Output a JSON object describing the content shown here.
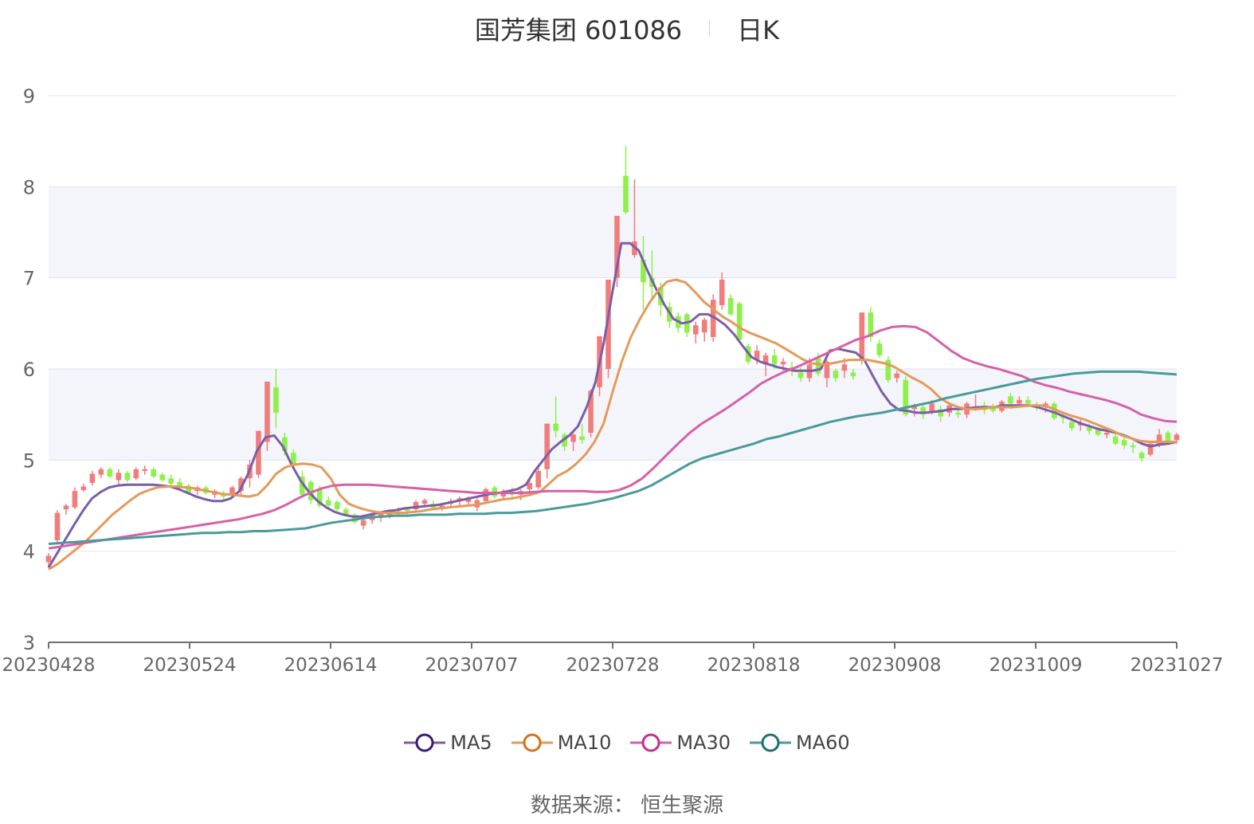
{
  "title": {
    "name": "国芳集团 601086",
    "period": "日K"
  },
  "source": "数据来源： 恒生聚源",
  "colors": {
    "up": "#f27c7c",
    "down": "#8ef04b",
    "MA5": "#7b5ea7",
    "MA10": "#e49a5a",
    "MA30": "#d660a8",
    "MA60": "#4a9a9a",
    "band": "#f3f5fb",
    "grid": "#dfe4f0",
    "axis": "#666666"
  },
  "legend": [
    {
      "name": "MA5",
      "icon_color": "#3b1a78"
    },
    {
      "name": "MA10",
      "icon_color": "#d4721c"
    },
    {
      "name": "MA30",
      "icon_color": "#c42d8c"
    },
    {
      "name": "MA60",
      "icon_color": "#1e7070"
    }
  ],
  "chart_data": {
    "type": "candlestick",
    "ylim": [
      3,
      9
    ],
    "yticks": [
      "3",
      "4",
      "5",
      "6",
      "7",
      "8",
      "9"
    ],
    "xtick_labels": [
      "20230428",
      "20230524",
      "20230614",
      "20230707",
      "20230728",
      "20230818",
      "20230908",
      "20231009",
      "20231027"
    ],
    "candles_ohlc": [
      [
        3.88,
        3.98,
        3.82,
        3.95
      ],
      [
        4.12,
        4.45,
        4.1,
        4.42
      ],
      [
        4.46,
        4.52,
        4.4,
        4.5
      ],
      [
        4.48,
        4.7,
        4.46,
        4.66
      ],
      [
        4.67,
        4.74,
        4.65,
        4.71
      ],
      [
        4.75,
        4.88,
        4.72,
        4.85
      ],
      [
        4.84,
        4.92,
        4.8,
        4.9
      ],
      [
        4.9,
        4.92,
        4.8,
        4.82
      ],
      [
        4.78,
        4.9,
        4.72,
        4.86
      ],
      [
        4.86,
        4.88,
        4.76,
        4.78
      ],
      [
        4.8,
        4.92,
        4.78,
        4.9
      ],
      [
        4.88,
        4.94,
        4.84,
        4.9
      ],
      [
        4.9,
        4.92,
        4.8,
        4.82
      ],
      [
        4.84,
        4.86,
        4.76,
        4.78
      ],
      [
        4.8,
        4.84,
        4.72,
        4.74
      ],
      [
        4.76,
        4.8,
        4.68,
        4.7
      ],
      [
        4.72,
        4.74,
        4.62,
        4.64
      ],
      [
        4.66,
        4.72,
        4.62,
        4.7
      ],
      [
        4.7,
        4.72,
        4.62,
        4.64
      ],
      [
        4.62,
        4.68,
        4.58,
        4.66
      ],
      [
        4.62,
        4.66,
        4.56,
        4.6
      ],
      [
        4.62,
        4.72,
        4.58,
        4.7
      ],
      [
        4.66,
        4.82,
        4.62,
        4.8
      ],
      [
        4.8,
        5.0,
        4.7,
        4.95
      ],
      [
        4.84,
        5.32,
        4.8,
        5.32
      ],
      [
        5.2,
        5.86,
        5.1,
        5.86
      ],
      [
        5.8,
        6.0,
        5.35,
        5.52
      ],
      [
        5.25,
        5.3,
        5.05,
        5.1
      ],
      [
        5.08,
        5.12,
        4.9,
        4.95
      ],
      [
        4.82,
        4.88,
        4.6,
        4.62
      ],
      [
        4.76,
        4.78,
        4.52,
        4.56
      ],
      [
        4.68,
        4.72,
        4.48,
        4.5
      ],
      [
        4.56,
        4.6,
        4.48,
        4.5
      ],
      [
        4.54,
        4.56,
        4.44,
        4.46
      ],
      [
        4.46,
        4.48,
        4.38,
        4.4
      ],
      [
        4.4,
        4.42,
        4.3,
        4.32
      ],
      [
        4.28,
        4.36,
        4.24,
        4.34
      ],
      [
        4.34,
        4.42,
        4.3,
        4.4
      ],
      [
        4.38,
        4.44,
        4.32,
        4.42
      ],
      [
        4.4,
        4.46,
        4.36,
        4.44
      ],
      [
        4.44,
        4.48,
        4.4,
        4.46
      ],
      [
        4.46,
        4.48,
        4.38,
        4.44
      ],
      [
        4.46,
        4.56,
        4.42,
        4.54
      ],
      [
        4.52,
        4.58,
        4.48,
        4.56
      ],
      [
        4.52,
        4.56,
        4.46,
        4.48
      ],
      [
        4.48,
        4.52,
        4.44,
        4.5
      ],
      [
        4.52,
        4.58,
        4.48,
        4.55
      ],
      [
        4.56,
        4.6,
        4.5,
        4.58
      ],
      [
        4.54,
        4.6,
        4.5,
        4.58
      ],
      [
        4.48,
        4.58,
        4.44,
        4.56
      ],
      [
        4.55,
        4.7,
        4.52,
        4.68
      ],
      [
        4.7,
        4.72,
        4.58,
        4.6
      ],
      [
        4.6,
        4.68,
        4.56,
        4.66
      ],
      [
        4.64,
        4.7,
        4.58,
        4.62
      ],
      [
        4.62,
        4.68,
        4.56,
        4.66
      ],
      [
        4.68,
        4.78,
        4.62,
        4.75
      ],
      [
        4.7,
        4.92,
        4.68,
        4.88
      ],
      [
        4.9,
        5.4,
        4.8,
        5.4
      ],
      [
        5.4,
        5.7,
        5.25,
        5.32
      ],
      [
        5.28,
        5.3,
        5.1,
        5.15
      ],
      [
        5.2,
        5.32,
        5.1,
        5.28
      ],
      [
        5.26,
        5.4,
        5.18,
        5.22
      ],
      [
        5.3,
        5.78,
        5.25,
        5.76
      ],
      [
        5.8,
        6.36,
        5.7,
        6.36
      ],
      [
        6.0,
        6.98,
        5.9,
        6.98
      ],
      [
        7.0,
        7.68,
        6.9,
        7.68
      ],
      [
        8.12,
        8.45,
        7.7,
        7.72
      ],
      [
        7.25,
        8.08,
        7.22,
        7.4
      ],
      [
        7.2,
        7.46,
        6.65,
        6.95
      ],
      [
        7.0,
        7.3,
        6.75,
        6.9
      ],
      [
        6.9,
        6.95,
        6.58,
        6.7
      ],
      [
        6.68,
        6.74,
        6.45,
        6.52
      ],
      [
        6.58,
        6.62,
        6.4,
        6.45
      ],
      [
        6.6,
        6.62,
        6.35,
        6.4
      ],
      [
        6.38,
        6.52,
        6.28,
        6.48
      ],
      [
        6.4,
        6.56,
        6.3,
        6.54
      ],
      [
        6.35,
        6.82,
        6.3,
        6.76
      ],
      [
        6.7,
        7.06,
        6.65,
        6.98
      ],
      [
        6.78,
        6.82,
        6.58,
        6.6
      ],
      [
        6.72,
        6.74,
        6.3,
        6.32
      ],
      [
        6.25,
        6.28,
        6.05,
        6.08
      ],
      [
        6.1,
        6.26,
        6.05,
        6.2
      ],
      [
        6.05,
        6.18,
        5.92,
        6.15
      ],
      [
        6.15,
        6.22,
        6.0,
        6.05
      ],
      [
        6.05,
        6.12,
        5.98,
        6.08
      ],
      [
        6.02,
        6.08,
        5.92,
        5.98
      ],
      [
        5.96,
        6.02,
        5.86,
        5.9
      ],
      [
        5.9,
        6.12,
        5.86,
        6.05
      ],
      [
        6.12,
        6.18,
        5.92,
        5.95
      ],
      [
        5.9,
        6.1,
        5.8,
        6.08
      ],
      [
        5.98,
        6.0,
        5.86,
        5.9
      ],
      [
        5.98,
        6.12,
        5.9,
        6.05
      ],
      [
        5.96,
        6.0,
        5.88,
        5.92
      ],
      [
        6.1,
        6.62,
        6.05,
        6.62
      ],
      [
        6.62,
        6.68,
        6.3,
        6.35
      ],
      [
        6.28,
        6.32,
        6.12,
        6.15
      ],
      [
        6.1,
        6.14,
        5.85,
        5.88
      ],
      [
        5.9,
        5.98,
        5.85,
        5.95
      ],
      [
        5.88,
        5.92,
        5.48,
        5.5
      ],
      [
        5.56,
        5.62,
        5.48,
        5.6
      ],
      [
        5.58,
        5.62,
        5.45,
        5.5
      ],
      [
        5.52,
        5.66,
        5.5,
        5.62
      ],
      [
        5.56,
        5.6,
        5.42,
        5.48
      ],
      [
        5.52,
        5.62,
        5.48,
        5.6
      ],
      [
        5.52,
        5.56,
        5.46,
        5.5
      ],
      [
        5.5,
        5.64,
        5.46,
        5.62
      ],
      [
        5.58,
        5.72,
        5.54,
        5.58
      ],
      [
        5.6,
        5.64,
        5.5,
        5.55
      ],
      [
        5.58,
        5.62,
        5.52,
        5.54
      ],
      [
        5.54,
        5.66,
        5.52,
        5.64
      ],
      [
        5.7,
        5.74,
        5.56,
        5.62
      ],
      [
        5.62,
        5.7,
        5.58,
        5.66
      ],
      [
        5.66,
        5.7,
        5.58,
        5.62
      ],
      [
        5.6,
        5.64,
        5.54,
        5.58
      ],
      [
        5.58,
        5.64,
        5.52,
        5.62
      ],
      [
        5.62,
        5.64,
        5.44,
        5.46
      ],
      [
        5.48,
        5.52,
        5.4,
        5.46
      ],
      [
        5.42,
        5.48,
        5.32,
        5.35
      ],
      [
        5.38,
        5.44,
        5.32,
        5.4
      ],
      [
        5.36,
        5.4,
        5.28,
        5.32
      ],
      [
        5.34,
        5.36,
        5.26,
        5.28
      ],
      [
        5.28,
        5.34,
        5.24,
        5.3
      ],
      [
        5.26,
        5.3,
        5.16,
        5.18
      ],
      [
        5.22,
        5.26,
        5.12,
        5.16
      ],
      [
        5.16,
        5.2,
        5.08,
        5.14
      ],
      [
        5.08,
        5.1,
        4.98,
        5.02
      ],
      [
        5.06,
        5.2,
        5.04,
        5.18
      ],
      [
        5.18,
        5.34,
        5.14,
        5.28
      ],
      [
        5.3,
        5.32,
        5.18,
        5.2
      ],
      [
        5.22,
        5.3,
        5.18,
        5.28
      ]
    ],
    "series": [
      {
        "name": "MA5",
        "values": [
          3.82,
          3.98,
          4.14,
          4.3,
          4.45,
          4.58,
          4.65,
          4.7,
          4.72,
          4.73,
          4.73,
          4.73,
          4.73,
          4.72,
          4.71,
          4.68,
          4.64,
          4.6,
          4.57,
          4.55,
          4.55,
          4.58,
          4.66,
          4.85,
          5.1,
          5.25,
          5.27,
          5.15,
          4.95,
          4.78,
          4.65,
          4.55,
          4.48,
          4.43,
          4.4,
          4.38,
          4.38,
          4.4,
          4.42,
          4.44,
          4.45,
          4.47,
          4.48,
          4.49,
          4.5,
          4.51,
          4.53,
          4.55,
          4.57,
          4.59,
          4.61,
          4.63,
          4.64,
          4.66,
          4.68,
          4.73,
          4.88,
          5.0,
          5.12,
          5.2,
          5.27,
          5.37,
          5.58,
          5.85,
          6.3,
          6.86,
          7.38,
          7.38,
          7.3,
          7.08,
          6.88,
          6.7,
          6.55,
          6.5,
          6.52,
          6.6,
          6.6,
          6.55,
          6.48,
          6.38,
          6.25,
          6.13,
          6.08,
          6.05,
          6.02,
          6.0,
          5.98,
          5.98,
          5.98,
          6.0,
          6.2,
          6.22,
          6.2,
          6.18,
          6.1,
          5.92,
          5.75,
          5.62,
          5.55,
          5.54,
          5.52,
          5.52,
          5.53,
          5.54,
          5.56,
          5.56,
          5.57,
          5.58,
          5.58,
          5.58,
          5.6,
          5.6,
          5.6,
          5.6,
          5.58,
          5.55,
          5.52,
          5.48,
          5.44,
          5.4,
          5.37,
          5.34,
          5.32,
          5.3,
          5.27,
          5.23,
          5.18,
          5.15,
          5.17,
          5.18,
          5.2
        ]
      },
      {
        "name": "MA10",
        "values": [
          3.8,
          3.86,
          3.94,
          4.02,
          4.1,
          4.2,
          4.3,
          4.4,
          4.48,
          4.56,
          4.63,
          4.67,
          4.7,
          4.71,
          4.71,
          4.7,
          4.69,
          4.67,
          4.65,
          4.63,
          4.62,
          4.61,
          4.6,
          4.62,
          4.72,
          4.85,
          4.92,
          4.95,
          4.96,
          4.95,
          4.92,
          4.8,
          4.62,
          4.52,
          4.48,
          4.45,
          4.43,
          4.42,
          4.42,
          4.42,
          4.43,
          4.44,
          4.46,
          4.47,
          4.48,
          4.49,
          4.5,
          4.51,
          4.53,
          4.55,
          4.57,
          4.58,
          4.6,
          4.62,
          4.65,
          4.74,
          4.83,
          4.88,
          4.96,
          5.06,
          5.2,
          5.4,
          5.75,
          6.08,
          6.35,
          6.55,
          6.72,
          6.86,
          6.96,
          6.98,
          6.95,
          6.85,
          6.74,
          6.66,
          6.58,
          6.52,
          6.45,
          6.4,
          6.36,
          6.32,
          6.28,
          6.22,
          6.16,
          6.1,
          6.06,
          6.05,
          6.06,
          6.08,
          6.1,
          6.1,
          6.1,
          6.08,
          6.06,
          6.02,
          5.96,
          5.9,
          5.85,
          5.78,
          5.68,
          5.62,
          5.58,
          5.56,
          5.56,
          5.57,
          5.58,
          5.58,
          5.58,
          5.59,
          5.6,
          5.6,
          5.58,
          5.54,
          5.5,
          5.47,
          5.44,
          5.4,
          5.36,
          5.32,
          5.27,
          5.24,
          5.21,
          5.2,
          5.2,
          5.2,
          5.2
        ]
      },
      {
        "name": "MA30",
        "values": [
          4.03,
          4.05,
          4.07,
          4.09,
          4.11,
          4.13,
          4.15,
          4.17,
          4.19,
          4.21,
          4.23,
          4.25,
          4.27,
          4.29,
          4.31,
          4.33,
          4.35,
          4.38,
          4.41,
          4.45,
          4.51,
          4.58,
          4.64,
          4.69,
          4.72,
          4.73,
          4.73,
          4.73,
          4.72,
          4.71,
          4.7,
          4.69,
          4.68,
          4.67,
          4.66,
          4.65,
          4.64,
          4.64,
          4.64,
          4.64,
          4.64,
          4.65,
          4.66,
          4.66,
          4.66,
          4.66,
          4.65,
          4.65,
          4.67,
          4.72,
          4.8,
          4.92,
          5.05,
          5.18,
          5.3,
          5.4,
          5.48,
          5.56,
          5.65,
          5.74,
          5.84,
          5.91,
          5.97,
          6.02,
          6.08,
          6.14,
          6.2,
          6.26,
          6.32,
          6.36,
          6.42,
          6.46,
          6.47,
          6.46,
          6.4,
          6.3,
          6.2,
          6.12,
          6.07,
          6.03,
          6.0,
          5.96,
          5.92,
          5.86,
          5.82,
          5.79,
          5.75,
          5.72,
          5.69,
          5.66,
          5.62,
          5.57,
          5.5,
          5.46,
          5.43,
          5.42
        ]
      },
      {
        "name": "MA60",
        "values": [
          4.08,
          4.09,
          4.1,
          4.11,
          4.12,
          4.13,
          4.14,
          4.15,
          4.16,
          4.17,
          4.18,
          4.19,
          4.2,
          4.2,
          4.21,
          4.21,
          4.22,
          4.22,
          4.23,
          4.24,
          4.25,
          4.28,
          4.31,
          4.33,
          4.35,
          4.37,
          4.38,
          4.39,
          4.39,
          4.4,
          4.4,
          4.4,
          4.41,
          4.41,
          4.41,
          4.42,
          4.42,
          4.43,
          4.44,
          4.46,
          4.48,
          4.5,
          4.52,
          4.55,
          4.58,
          4.62,
          4.66,
          4.72,
          4.8,
          4.88,
          4.96,
          5.02,
          5.06,
          5.1,
          5.14,
          5.18,
          5.23,
          5.26,
          5.3,
          5.34,
          5.38,
          5.42,
          5.45,
          5.48,
          5.5,
          5.52,
          5.55,
          5.58,
          5.61,
          5.64,
          5.68,
          5.71,
          5.74,
          5.77,
          5.8,
          5.83,
          5.86,
          5.89,
          5.91,
          5.93,
          5.95,
          5.96,
          5.97,
          5.97,
          5.97,
          5.97,
          5.96,
          5.95,
          5.94
        ]
      }
    ]
  }
}
